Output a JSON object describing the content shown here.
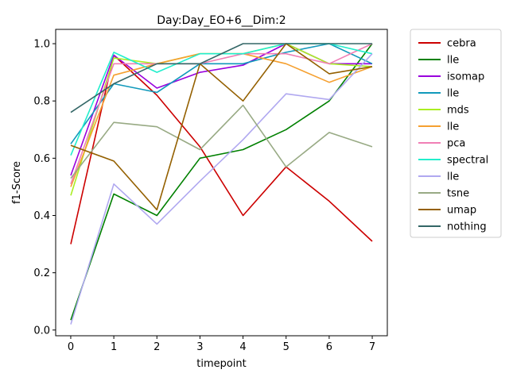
{
  "chart_data": {
    "type": "line",
    "title": "Day:Day_EO+6__Dim:2",
    "xlabel": "timepoint",
    "ylabel": "f1-Score",
    "x": [
      0,
      1,
      2,
      3,
      4,
      5,
      6,
      7
    ],
    "xlim": [
      -0.35,
      7.35
    ],
    "ylim": [
      -0.02,
      1.05
    ],
    "xticks": [
      0,
      1,
      2,
      3,
      4,
      5,
      6,
      7
    ],
    "yticks": [
      0.0,
      0.2,
      0.4,
      0.6,
      0.8,
      1.0
    ],
    "ytick_labels": [
      "0.0",
      "0.2",
      "0.4",
      "0.6",
      "0.8",
      "1.0"
    ],
    "grid": false,
    "legend_position": "outside-right",
    "series": [
      {
        "name": "cebra",
        "color": "#cc0000",
        "values": [
          0.3,
          0.96,
          0.82,
          0.64,
          0.4,
          0.57,
          0.45,
          0.31
        ]
      },
      {
        "name": "lle",
        "color": "#008000",
        "values": [
          0.035,
          0.475,
          0.4,
          0.6,
          0.63,
          0.7,
          0.8,
          1.0
        ]
      },
      {
        "name": "isomap",
        "color": "#9900dd",
        "values": [
          0.54,
          0.96,
          0.845,
          0.9,
          0.925,
          1.0,
          0.93,
          0.93
        ]
      },
      {
        "name": "lle",
        "color": "#1199bb",
        "values": [
          0.65,
          0.86,
          0.83,
          0.93,
          0.93,
          0.97,
          1.0,
          0.93
        ]
      },
      {
        "name": "mds",
        "color": "#aaee22",
        "values": [
          0.47,
          0.95,
          0.93,
          0.965,
          0.965,
          1.0,
          0.93,
          0.92
        ]
      },
      {
        "name": "lle",
        "color": "#f5a030",
        "values": [
          0.5,
          0.89,
          0.93,
          0.965,
          0.965,
          0.93,
          0.865,
          0.92
        ]
      },
      {
        "name": "pca",
        "color": "#f07fb5",
        "values": [
          0.51,
          0.93,
          0.93,
          0.93,
          0.965,
          0.965,
          0.93,
          1.0
        ]
      },
      {
        "name": "spectral",
        "color": "#22eecc",
        "values": [
          0.61,
          0.97,
          0.9,
          0.965,
          0.965,
          1.0,
          1.0,
          0.965
        ]
      },
      {
        "name": "lle",
        "color": "#b0a8f0",
        "values": [
          0.02,
          0.51,
          0.37,
          0.52,
          0.665,
          0.825,
          0.805,
          0.965
        ]
      },
      {
        "name": "tsne",
        "color": "#98aa84",
        "values": [
          0.53,
          0.725,
          0.71,
          0.63,
          0.785,
          0.57,
          0.69,
          0.64
        ]
      },
      {
        "name": "umap",
        "color": "#946000",
        "values": [
          0.645,
          0.59,
          0.42,
          0.93,
          0.8,
          1.0,
          0.895,
          0.92
        ]
      },
      {
        "name": "nothing",
        "color": "#336666",
        "values": [
          0.76,
          0.86,
          0.93,
          0.93,
          1.0,
          1.0,
          1.0,
          1.0
        ]
      }
    ]
  }
}
